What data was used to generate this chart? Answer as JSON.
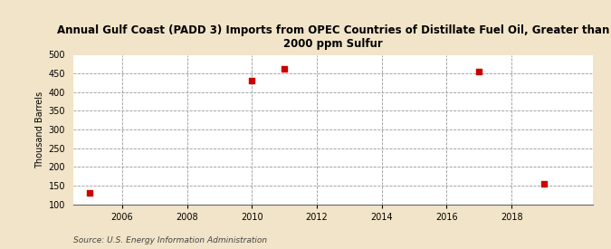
{
  "title": "Annual Gulf Coast (PADD 3) Imports from OPEC Countries of Distillate Fuel Oil, Greater than\n2000 ppm Sulfur",
  "ylabel": "Thousand Barrels",
  "source": "Source: U.S. Energy Information Administration",
  "background_color": "#f2e4c8",
  "plot_bg_color": "#ffffff",
  "xlim": [
    2004.5,
    2020.5
  ],
  "ylim": [
    100,
    500
  ],
  "yticks": [
    100,
    150,
    200,
    250,
    300,
    350,
    400,
    450,
    500
  ],
  "xticks": [
    2006,
    2008,
    2010,
    2012,
    2014,
    2016,
    2018
  ],
  "data_x": [
    2005,
    2010,
    2011,
    2017,
    2019
  ],
  "data_y": [
    130,
    430,
    463,
    455,
    155
  ],
  "marker_color": "#cc0000",
  "marker_size": 4,
  "grid_color": "#999999",
  "title_fontsize": 8.5,
  "axis_fontsize": 7,
  "tick_fontsize": 7,
  "source_fontsize": 6.5
}
